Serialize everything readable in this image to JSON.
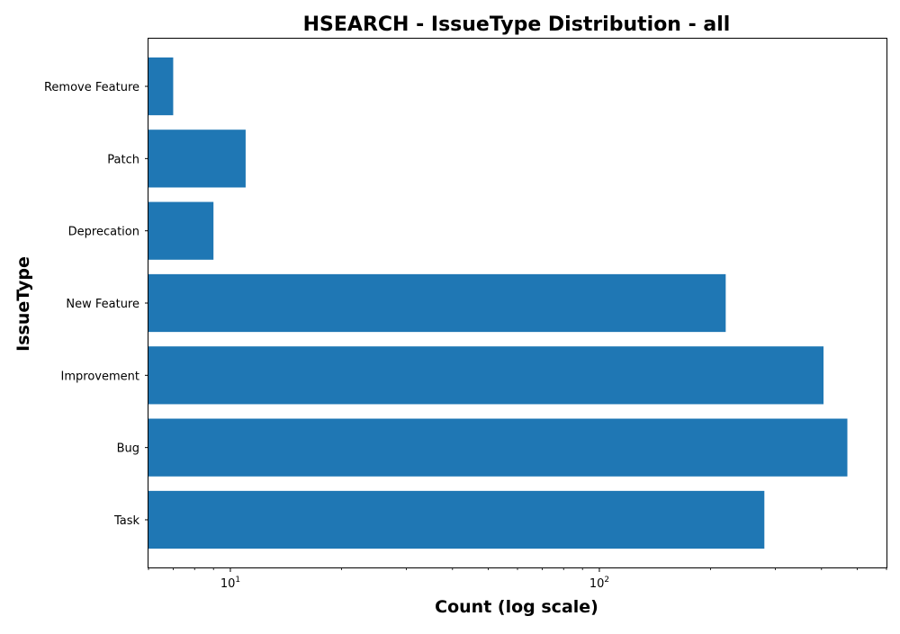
{
  "chart_data": {
    "type": "bar",
    "orientation": "horizontal",
    "title": "HSEARCH - IssueType Distribution - all",
    "xlabel": "Count (log scale)",
    "ylabel": "IssueType",
    "xscale": "log",
    "xlim": [
      6,
      600
    ],
    "x_major_ticks": [
      {
        "value": 10,
        "base": "10",
        "exp": "1"
      },
      {
        "value": 100,
        "base": "10",
        "exp": "2"
      }
    ],
    "categories": [
      "Task",
      "Bug",
      "Improvement",
      "New Feature",
      "Deprecation",
      "Patch",
      "Remove Feature"
    ],
    "values": [
      280,
      470,
      405,
      220,
      9,
      11,
      7
    ],
    "bar_color": "#1f77b4",
    "grid": false,
    "legend": "none"
  }
}
